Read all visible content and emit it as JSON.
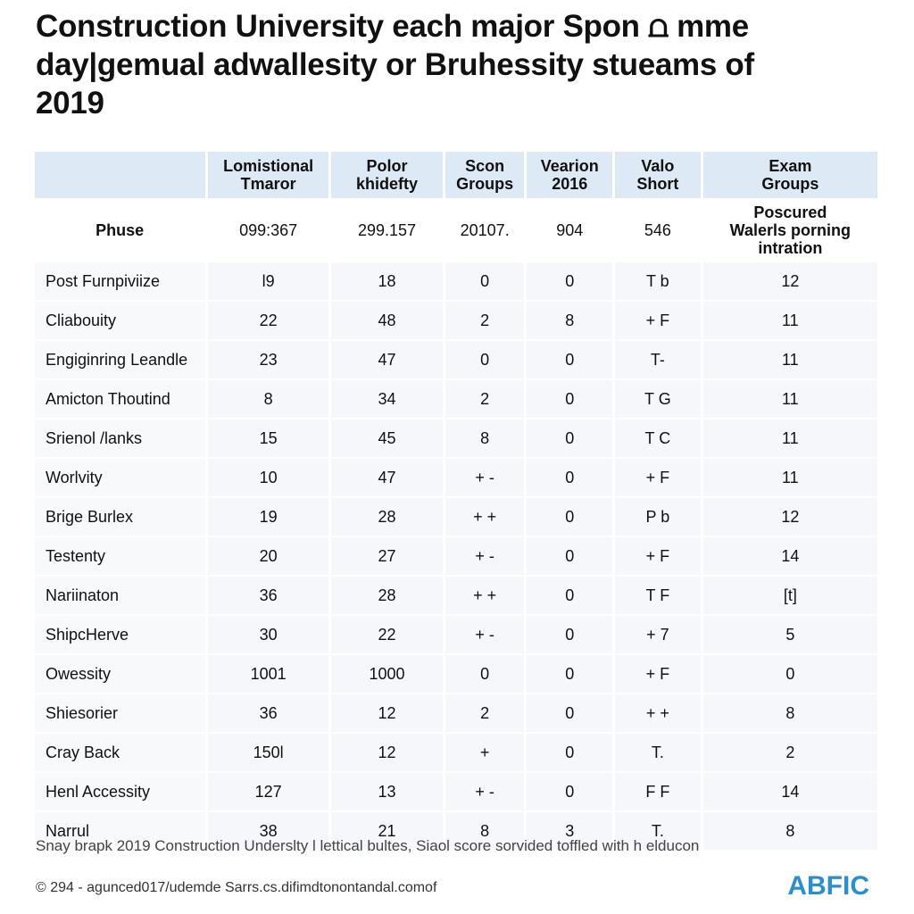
{
  "title": [
    "Construction University each major Spon ⩍ mme",
    "day|gemual adwallesity or Bruhessity stueams of",
    "2019"
  ],
  "table": {
    "header": [
      "",
      "Lomistional\nTmaror",
      "Polor\nkhidefty",
      "Scon\nGroups",
      "Vearion\n2016",
      "Valo\nShort",
      "Exam\nGroups"
    ],
    "rows": [
      [
        "Phuse",
        "099:367",
        "299.157",
        "20107.",
        "904",
        "546",
        "Poscured\nWalerls porning\nintration"
      ],
      [
        "Post Furnpiviize",
        "l9",
        "18",
        "0",
        "0",
        "T b",
        "12"
      ],
      [
        "Cliabouity",
        "22",
        "48",
        "2",
        "8",
        "+ F",
        "11"
      ],
      [
        "Engiginring Leandle",
        "23",
        "47",
        "0",
        "0",
        "T-",
        "11"
      ],
      [
        "Amicton Thoutind",
        "8",
        "34",
        "2",
        "0",
        "T G",
        "11"
      ],
      [
        "Srienol /lanks",
        "15",
        "45",
        "8",
        "0",
        "T C",
        "11"
      ],
      [
        "Worlvity",
        "10",
        "47",
        "+ -",
        "0",
        "+ F",
        "11"
      ],
      [
        "Brige Burlex",
        "19",
        "28",
        "+ +",
        "0",
        "P b",
        "12"
      ],
      [
        "Testenty",
        "20",
        "27",
        "+ -",
        "0",
        "+ F",
        "14"
      ],
      [
        "Nariinaton",
        "36",
        "28",
        "+ +",
        "0",
        "T F",
        "[t]"
      ],
      [
        "ShipcHerve",
        "30",
        "22",
        "+ -",
        "0",
        "+ 7",
        "5"
      ],
      [
        "Owessity",
        "1001",
        "1000",
        "0",
        "0",
        "+ F",
        "0"
      ],
      [
        "Shiesorier",
        "36",
        "12",
        "2",
        "0",
        "+ +",
        "8"
      ],
      [
        "Cray Back",
        "150l",
        "12",
        "+",
        "0",
        "T.",
        "2"
      ],
      [
        "Henl Accessity",
        "127",
        "13",
        "+ -",
        "0",
        "F F",
        "14"
      ],
      [
        "Narrul",
        "38",
        "21",
        "8",
        "3",
        "T.",
        "8"
      ]
    ]
  },
  "caption": "Snay brapk 2019 Construction Underslty l lettical bultes, Siaol score sorvided toffled with h elducon",
  "footer": {
    "copyright": "© 294 - agunced017/udemde Sarrs.cs.difimdtonontandal.comof",
    "logo": "ABFIC"
  }
}
